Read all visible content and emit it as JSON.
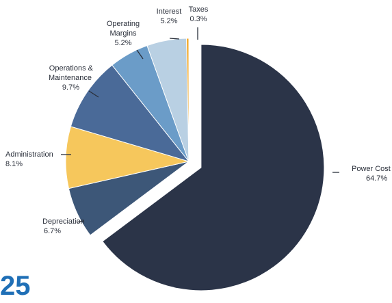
{
  "chart_data": {
    "type": "pie",
    "title": "",
    "slices": [
      {
        "label": "Power Cost",
        "value": 64.7,
        "display": "64.7%",
        "color": "#2b3448",
        "exploded": true
      },
      {
        "label": "Depreciation",
        "value": 6.7,
        "display": "6.7%",
        "color": "#3d5778"
      },
      {
        "label": "Administration",
        "value": 8.1,
        "display": "8.1%",
        "color": "#f6c75c"
      },
      {
        "label": "Operations & Maintenance",
        "value": 9.7,
        "display": "9.7%",
        "color": "#4a6a98"
      },
      {
        "label": "Operating Margins",
        "value": 5.2,
        "display": "5.2%",
        "color": "#6b9cc8"
      },
      {
        "label": "Interest",
        "value": 5.2,
        "display": "5.2%",
        "color": "#b9d0e3"
      },
      {
        "label": "Taxes",
        "value": 0.3,
        "display": "0.3%",
        "color": "#f2a521"
      }
    ]
  },
  "page": {
    "corner_number": "25",
    "corner_color": "#1f6fb6"
  }
}
